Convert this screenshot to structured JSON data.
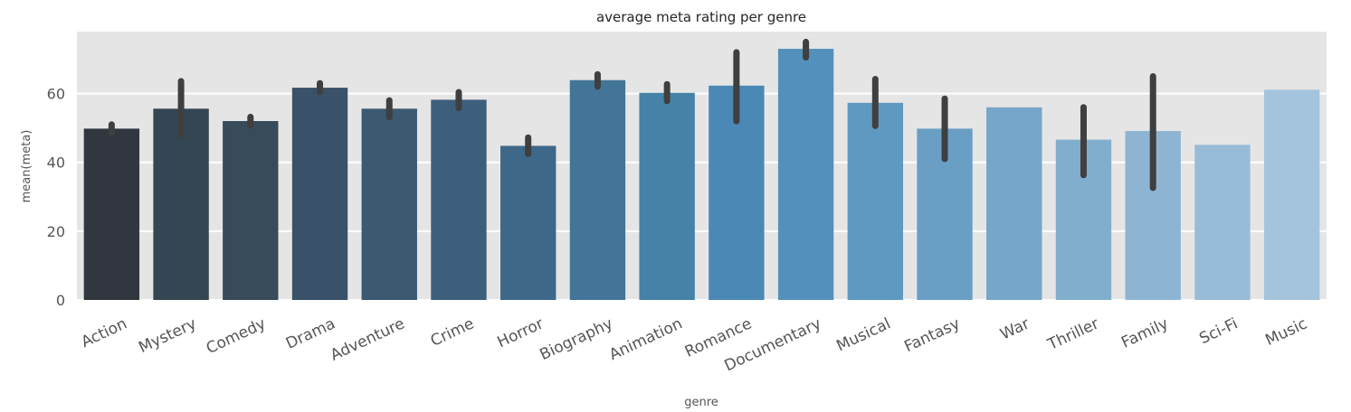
{
  "chart_data": {
    "type": "bar",
    "title": "average meta rating per genre",
    "xlabel": "genre",
    "ylabel": "mean(meta)",
    "ylim": [
      0,
      78
    ],
    "yticks": [
      0,
      20,
      40,
      60
    ],
    "grid": true,
    "categories": [
      "Action",
      "Mystery",
      "Comedy",
      "Drama",
      "Adventure",
      "Crime",
      "Horror",
      "Biography",
      "Animation",
      "Romance",
      "Documentary",
      "Musical",
      "Fantasy",
      "War",
      "Thriller",
      "Family",
      "Sci-Fi",
      "Music"
    ],
    "values": [
      49.8,
      55.6,
      52.0,
      61.7,
      55.6,
      58.2,
      44.8,
      63.9,
      60.2,
      62.3,
      73.0,
      57.3,
      49.8,
      56.0,
      46.6,
      49.1,
      45.1,
      61.1
    ],
    "error_low": [
      48.6,
      47.8,
      50.8,
      60.5,
      53.1,
      55.8,
      42.4,
      62.0,
      57.8,
      52.0,
      70.5,
      50.6,
      41.0,
      null,
      36.3,
      32.6,
      null,
      null
    ],
    "error_high": [
      51.0,
      63.6,
      53.2,
      63.0,
      58.0,
      60.4,
      47.2,
      65.6,
      62.7,
      72.0,
      75.0,
      64.2,
      58.5,
      null,
      56.0,
      65.0,
      null,
      null
    ],
    "colors": [
      "#32373f",
      "#344651",
      "#384b5a",
      "#3a5269",
      "#3b5a72",
      "#3d5f7c",
      "#3e6889",
      "#437599",
      "#4682a8",
      "#4a88b5",
      "#5490bc",
      "#5f98c0",
      "#6a9fc5",
      "#76a6c9",
      "#82aece",
      "#8db5d3",
      "#98bcd7",
      "#a4c3dc"
    ],
    "error_color": "#3f3f3f",
    "background_color": "#e5e5e5",
    "grid_color": "#ffffff"
  }
}
